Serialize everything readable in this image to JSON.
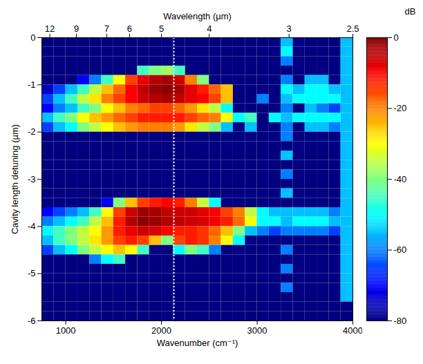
{
  "chart_data": {
    "type": "heatmap",
    "x_label": "Wavenumber (cm⁻¹)",
    "y_label": "Cavity length detuning (µm)",
    "top_axis": {
      "label": "Wavelength (µm)",
      "ticks": [
        {
          "value": 833.3,
          "label": "12"
        },
        {
          "value": 1111.1,
          "label": "9"
        },
        {
          "value": 1428.6,
          "label": "7"
        },
        {
          "value": 1666.7,
          "label": "6"
        },
        {
          "value": 2000,
          "label": "5"
        },
        {
          "value": 2500,
          "label": "4"
        },
        {
          "value": 3333.3,
          "label": "3"
        },
        {
          "value": 4000,
          "label": "2.5"
        }
      ]
    },
    "xlim": [
      750,
      4000
    ],
    "xticks": [
      1000,
      2000,
      3000,
      4000
    ],
    "ylim": [
      -6,
      0
    ],
    "yticks": [
      0,
      -1,
      -2,
      -3,
      -4,
      -5,
      -6
    ],
    "marker_line_x": 2130,
    "x_edges": [
      750,
      875,
      1000,
      1125,
      1250,
      1375,
      1500,
      1625,
      1750,
      1875,
      2000,
      2125,
      2250,
      2375,
      2500,
      2625,
      2750,
      2875,
      3000,
      3125,
      3250,
      3375,
      3500,
      3625,
      3750,
      3875,
      4000
    ],
    "y_edges": [
      0,
      -0.2,
      -0.4,
      -0.6,
      -0.8,
      -1,
      -1.2,
      -1.4,
      -1.6,
      -1.8,
      -2,
      -2.2,
      -2.4,
      -2.6,
      -2.8,
      -3,
      -3.2,
      -3.4,
      -3.6,
      -3.8,
      -4,
      -4.2,
      -4.4,
      -4.6,
      -4.8,
      -5,
      -5.2,
      -5.4,
      -5.6,
      -5.8,
      -6
    ],
    "cells": [
      [
        -80,
        -80,
        -80,
        -80,
        -80,
        -80,
        -80,
        -80,
        -80,
        -80,
        -80,
        -80,
        -80,
        -80,
        -80,
        -80,
        -80,
        -80,
        -80,
        -80,
        -55,
        -80,
        -80,
        -80,
        -80,
        -55
      ],
      [
        -80,
        -80,
        -80,
        -80,
        -80,
        -80,
        -80,
        -80,
        -80,
        -80,
        -80,
        -80,
        -80,
        -80,
        -80,
        -80,
        -80,
        -80,
        -80,
        -80,
        -50,
        -80,
        -80,
        -80,
        -80,
        -55
      ],
      [
        -80,
        -80,
        -80,
        -80,
        -80,
        -80,
        -80,
        -80,
        -80,
        -80,
        -80,
        -80,
        -80,
        -80,
        -80,
        -80,
        -80,
        -80,
        -80,
        -80,
        -60,
        -80,
        -80,
        -80,
        -80,
        -55
      ],
      [
        -80,
        -80,
        -80,
        -80,
        -80,
        -80,
        -80,
        -80,
        -45,
        -40,
        -38,
        -45,
        -80,
        -80,
        -80,
        -80,
        -80,
        -80,
        -80,
        -80,
        -80,
        -80,
        -80,
        -80,
        -80,
        -55
      ],
      [
        -80,
        -80,
        -80,
        -70,
        -60,
        -45,
        -30,
        -15,
        -8,
        -4,
        -3,
        -6,
        -20,
        -40,
        -80,
        -80,
        -80,
        -80,
        -80,
        -80,
        -60,
        -80,
        -55,
        -55,
        -80,
        -55
      ],
      [
        -75,
        -65,
        -55,
        -45,
        -35,
        -25,
        -18,
        -10,
        -5,
        -2,
        -1,
        -3,
        -8,
        -12,
        -18,
        -25,
        -80,
        -80,
        -80,
        -80,
        -50,
        -55,
        -50,
        -50,
        -55,
        -55
      ],
      [
        -65,
        -55,
        -45,
        -35,
        -28,
        -20,
        -15,
        -10,
        -6,
        -4,
        -3,
        -5,
        -8,
        -10,
        -15,
        -25,
        -80,
        -80,
        -60,
        -80,
        -55,
        -50,
        -50,
        -50,
        -50,
        -55
      ],
      [
        -70,
        -60,
        -55,
        -45,
        -40,
        -30,
        -25,
        -20,
        -18,
        -15,
        -15,
        -18,
        -22,
        -28,
        -35,
        -50,
        -80,
        -80,
        -80,
        -80,
        -60,
        -80,
        -55,
        -60,
        -65,
        -55
      ],
      [
        -55,
        -45,
        -40,
        -30,
        -25,
        -22,
        -18,
        -15,
        -12,
        -12,
        -12,
        -12,
        -15,
        -18,
        -20,
        -30,
        -50,
        -45,
        -80,
        -50,
        -55,
        -50,
        -50,
        -50,
        -50,
        -55
      ],
      [
        -65,
        -55,
        -50,
        -40,
        -35,
        -30,
        -25,
        -22,
        -20,
        -20,
        -20,
        -22,
        -28,
        -35,
        -40,
        -55,
        -80,
        -55,
        -80,
        -80,
        -60,
        -80,
        -55,
        -55,
        -60,
        -55
      ],
      [
        -80,
        -80,
        -80,
        -80,
        -80,
        -80,
        -80,
        -80,
        -80,
        -80,
        -80,
        -80,
        -80,
        -80,
        -80,
        -80,
        -80,
        -80,
        -80,
        -80,
        -60,
        -80,
        -80,
        -80,
        -80,
        -55
      ],
      [
        -80,
        -80,
        -80,
        -80,
        -80,
        -80,
        -80,
        -80,
        -80,
        -80,
        -80,
        -80,
        -80,
        -80,
        -80,
        -80,
        -80,
        -80,
        -80,
        -80,
        -80,
        -80,
        -80,
        -80,
        -80,
        -55
      ],
      [
        -80,
        -80,
        -80,
        -80,
        -80,
        -80,
        -80,
        -80,
        -80,
        -80,
        -80,
        -80,
        -80,
        -80,
        -80,
        -80,
        -80,
        -80,
        -80,
        -80,
        -55,
        -80,
        -80,
        -80,
        -80,
        -55
      ],
      [
        -80,
        -80,
        -80,
        -80,
        -80,
        -80,
        -80,
        -80,
        -80,
        -80,
        -80,
        -80,
        -80,
        -80,
        -80,
        -80,
        -80,
        -80,
        -80,
        -80,
        -80,
        -80,
        -80,
        -80,
        -80,
        -55
      ],
      [
        -80,
        -80,
        -80,
        -80,
        -80,
        -80,
        -80,
        -80,
        -80,
        -80,
        -80,
        -80,
        -80,
        -80,
        -80,
        -80,
        -80,
        -80,
        -80,
        -80,
        -60,
        -80,
        -80,
        -80,
        -80,
        -55
      ],
      [
        -80,
        -80,
        -80,
        -80,
        -80,
        -80,
        -80,
        -80,
        -80,
        -80,
        -80,
        -80,
        -80,
        -80,
        -80,
        -80,
        -80,
        -80,
        -80,
        -80,
        -80,
        -80,
        -80,
        -80,
        -80,
        -55
      ],
      [
        -80,
        -80,
        -80,
        -80,
        -80,
        -80,
        -80,
        -80,
        -80,
        -80,
        -80,
        -80,
        -80,
        -80,
        -80,
        -80,
        -80,
        -80,
        -80,
        -80,
        -55,
        -80,
        -80,
        -80,
        -80,
        -55
      ],
      [
        -80,
        -80,
        -80,
        -80,
        -80,
        -70,
        -40,
        -25,
        -15,
        -12,
        -10,
        -12,
        -20,
        -35,
        -50,
        -80,
        -80,
        -80,
        -80,
        -80,
        -80,
        -80,
        -80,
        -80,
        -80,
        -55
      ],
      [
        -70,
        -65,
        -60,
        -55,
        -45,
        -30,
        -15,
        -6,
        -2,
        -3,
        -5,
        -6,
        -6,
        -8,
        -10,
        -15,
        -20,
        -35,
        -50,
        -55,
        -55,
        -55,
        -55,
        -55,
        -60,
        -55
      ],
      [
        -60,
        -55,
        -50,
        -45,
        -35,
        -25,
        -12,
        -4,
        -1,
        -2,
        -4,
        -5,
        -6,
        -7,
        -9,
        -12,
        -18,
        -30,
        -50,
        -50,
        -55,
        -50,
        -50,
        -50,
        -55,
        -55
      ],
      [
        -50,
        -45,
        -40,
        -35,
        -30,
        -22,
        -12,
        -8,
        -6,
        -7,
        -10,
        -12,
        -12,
        -14,
        -18,
        -25,
        -40,
        -55,
        -60,
        -65,
        -60,
        -60,
        -60,
        -60,
        -65,
        -55
      ],
      [
        -55,
        -45,
        -40,
        -35,
        -28,
        -22,
        -15,
        -12,
        -15,
        -25,
        -40,
        -15,
        -12,
        -14,
        -20,
        -30,
        -50,
        -80,
        -80,
        -80,
        -80,
        -80,
        -80,
        -80,
        -80,
        -55
      ],
      [
        -65,
        -55,
        -50,
        -40,
        -35,
        -30,
        -25,
        -30,
        -45,
        -80,
        -80,
        -50,
        -40,
        -45,
        -60,
        -80,
        -80,
        -80,
        -80,
        -80,
        -60,
        -80,
        -80,
        -80,
        -80,
        -55
      ],
      [
        -80,
        -80,
        -80,
        -80,
        -60,
        -50,
        -45,
        -80,
        -80,
        -80,
        -80,
        -80,
        -80,
        -80,
        -80,
        -80,
        -80,
        -80,
        -80,
        -80,
        -80,
        -80,
        -80,
        -80,
        -80,
        -55
      ],
      [
        -80,
        -80,
        -80,
        -80,
        -80,
        -80,
        -80,
        -80,
        -80,
        -80,
        -80,
        -80,
        -80,
        -80,
        -80,
        -80,
        -80,
        -80,
        -80,
        -80,
        -60,
        -80,
        -80,
        -80,
        -80,
        -55
      ],
      [
        -80,
        -80,
        -80,
        -80,
        -80,
        -80,
        -80,
        -80,
        -80,
        -80,
        -80,
        -80,
        -80,
        -80,
        -80,
        -80,
        -80,
        -80,
        -80,
        -80,
        -80,
        -80,
        -80,
        -80,
        -80,
        -55
      ],
      [
        -80,
        -80,
        -80,
        -80,
        -80,
        -80,
        -80,
        -80,
        -80,
        -80,
        -80,
        -80,
        -80,
        -80,
        -80,
        -80,
        -80,
        -80,
        -80,
        -80,
        -60,
        -80,
        -80,
        -80,
        -80,
        -55
      ],
      [
        -80,
        -80,
        -80,
        -80,
        -80,
        -80,
        -80,
        -80,
        -80,
        -80,
        -80,
        -80,
        -80,
        -80,
        -80,
        -80,
        -80,
        -80,
        -80,
        -80,
        -80,
        -80,
        -80,
        -80,
        -80,
        -55
      ],
      [
        -80,
        -80,
        -80,
        -80,
        -80,
        -80,
        -80,
        -80,
        -80,
        -80,
        -80,
        -80,
        -80,
        -80,
        -80,
        -80,
        -80,
        -80,
        -80,
        -80,
        -80,
        -80,
        -80,
        -80,
        -80,
        -80
      ],
      [
        -80,
        -80,
        -80,
        -80,
        -80,
        -80,
        -80,
        -80,
        -80,
        -80,
        -80,
        -80,
        -80,
        -80,
        -80,
        -80,
        -80,
        -80,
        -80,
        -80,
        -80,
        -80,
        -80,
        -80,
        -80,
        -80
      ]
    ],
    "colorbar": {
      "label": "dB",
      "range": [
        -80,
        0
      ],
      "ticks": [
        0,
        -20,
        -40,
        -60,
        -80
      ]
    }
  }
}
